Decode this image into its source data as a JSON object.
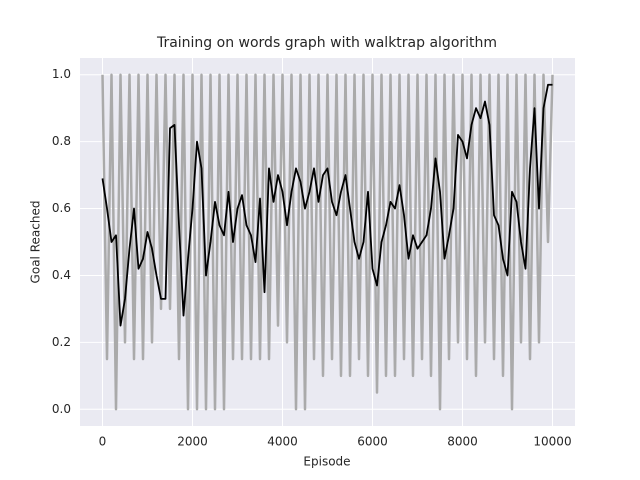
{
  "chart_data": {
    "type": "line",
    "title": "Training on words graph with walktrap algorithm",
    "x_label": "Episode",
    "y_label": "Goal Reached",
    "xlim": [
      -500,
      10500
    ],
    "ylim": [
      -0.05,
      1.05
    ],
    "xticks": [
      0,
      2000,
      4000,
      6000,
      8000,
      10000
    ],
    "yticks": [
      {
        "value": 0,
        "label": "0.0"
      },
      0.2,
      0.4,
      0.6,
      0.8,
      {
        "value": 1,
        "label": "1.0"
      }
    ],
    "grid": true,
    "x": [
      0,
      100,
      200,
      300,
      400,
      500,
      600,
      700,
      800,
      900,
      1000,
      1100,
      1200,
      1300,
      1400,
      1500,
      1600,
      1700,
      1800,
      1900,
      2000,
      2100,
      2200,
      2300,
      2400,
      2500,
      2600,
      2700,
      2800,
      2900,
      3000,
      3100,
      3200,
      3300,
      3400,
      3500,
      3600,
      3700,
      3800,
      3900,
      4000,
      4100,
      4200,
      4300,
      4400,
      4500,
      4600,
      4700,
      4800,
      4900,
      5000,
      5100,
      5200,
      5300,
      5400,
      5500,
      5600,
      5700,
      5800,
      5900,
      6000,
      6100,
      6200,
      6300,
      6400,
      6500,
      6600,
      6700,
      6800,
      6900,
      7000,
      7100,
      7200,
      7300,
      7400,
      7500,
      7600,
      7700,
      7800,
      7900,
      8000,
      8100,
      8200,
      8300,
      8400,
      8500,
      8600,
      8700,
      8800,
      8900,
      9000,
      9100,
      9200,
      9300,
      9400,
      9500,
      9600,
      9700,
      9800,
      9900,
      10000
    ],
    "series": [
      {
        "color": "#aaaaaa",
        "values": [
          1,
          0.15,
          1,
          0,
          1,
          0.2,
          1,
          0.15,
          1,
          0.15,
          1,
          0.2,
          1,
          0.3,
          1,
          0.3,
          1,
          0.15,
          1,
          0,
          1,
          0,
          1,
          0,
          1,
          0,
          1,
          0,
          1,
          0.15,
          1,
          0.15,
          1,
          0.15,
          1,
          0.15,
          1,
          0.15,
          1,
          0.25,
          1,
          0.2,
          1,
          0,
          1,
          0,
          1,
          0.15,
          1,
          0.1,
          1,
          0.15,
          1,
          0.1,
          1,
          0.1,
          1,
          0.15,
          1,
          0.1,
          1,
          0.05,
          1,
          0.1,
          1,
          0.1,
          1,
          0.15,
          1,
          0.1,
          1,
          0.15,
          1,
          0.1,
          1,
          0,
          1,
          0.15,
          1,
          0.2,
          1,
          0.15,
          1,
          0.1,
          1,
          0.2,
          1,
          0.15,
          1,
          0.1,
          1,
          0,
          1,
          0.2,
          1,
          0.15,
          1,
          0.2,
          1,
          0.5,
          1
        ]
      },
      {
        "color": "#000000",
        "values": [
          0.69,
          0.6,
          0.5,
          0.52,
          0.25,
          0.33,
          0.48,
          0.6,
          0.42,
          0.45,
          0.53,
          0.48,
          0.4,
          0.33,
          0.33,
          0.84,
          0.85,
          0.55,
          0.28,
          0.45,
          0.6,
          0.8,
          0.72,
          0.4,
          0.5,
          0.62,
          0.55,
          0.52,
          0.65,
          0.5,
          0.6,
          0.64,
          0.55,
          0.52,
          0.44,
          0.63,
          0.35,
          0.72,
          0.62,
          0.7,
          0.65,
          0.55,
          0.65,
          0.72,
          0.68,
          0.6,
          0.65,
          0.72,
          0.62,
          0.7,
          0.72,
          0.62,
          0.58,
          0.65,
          0.7,
          0.6,
          0.5,
          0.45,
          0.5,
          0.65,
          0.42,
          0.37,
          0.5,
          0.55,
          0.62,
          0.6,
          0.67,
          0.58,
          0.45,
          0.52,
          0.48,
          0.5,
          0.52,
          0.6,
          0.75,
          0.65,
          0.45,
          0.52,
          0.6,
          0.82,
          0.8,
          0.75,
          0.85,
          0.9,
          0.87,
          0.92,
          0.85,
          0.58,
          0.55,
          0.45,
          0.4,
          0.65,
          0.62,
          0.5,
          0.42,
          0.72,
          0.9,
          0.6,
          0.9,
          0.97,
          0.97
        ]
      }
    ]
  }
}
